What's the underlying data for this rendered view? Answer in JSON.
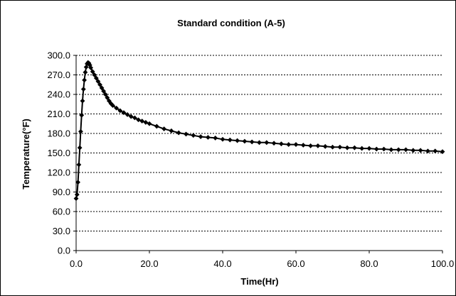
{
  "chart_data": {
    "type": "line",
    "title": "Standard condition (A-5)",
    "xlabel": "Time(Hr)",
    "ylabel": "Temperature(°F)",
    "xlim": [
      0,
      100
    ],
    "ylim": [
      0,
      300
    ],
    "x_ticks": [
      0,
      20,
      40,
      60,
      80,
      100
    ],
    "x_tick_labels": [
      "0.0",
      "20.0",
      "40.0",
      "60.0",
      "80.0",
      "100.0"
    ],
    "y_ticks": [
      0,
      30,
      60,
      90,
      120,
      150,
      180,
      210,
      240,
      270,
      300
    ],
    "y_tick_labels": [
      "0.0",
      "30.0",
      "60.0",
      "90.0",
      "120.0",
      "150.0",
      "180.0",
      "210.0",
      "240.0",
      "270.0",
      "300.0"
    ],
    "grid": "horizontal-dotted",
    "legend": "none",
    "series": [
      {
        "marker": "diamond",
        "color": "#000000",
        "x": [
          0,
          0.25,
          0.5,
          0.75,
          1,
          1.25,
          1.5,
          1.75,
          2,
          2.25,
          2.5,
          2.75,
          3,
          3.25,
          3.5,
          3.75,
          4,
          4.5,
          5,
          5.5,
          6,
          6.5,
          7,
          7.5,
          8,
          8.5,
          9,
          9.5,
          10,
          11,
          12,
          13,
          14,
          15,
          16,
          17,
          18,
          19,
          20,
          22,
          24,
          26,
          28,
          30,
          32,
          34,
          36,
          38,
          40,
          42,
          44,
          46,
          48,
          50,
          52,
          54,
          56,
          58,
          60,
          62,
          64,
          66,
          68,
          70,
          72,
          74,
          76,
          78,
          80,
          82,
          84,
          86,
          88,
          90,
          92,
          94,
          96,
          98,
          100
        ],
        "y": [
          80,
          86,
          105,
          132,
          158,
          183,
          208,
          230,
          248,
          262,
          274,
          282,
          287,
          289,
          288,
          285,
          281,
          275,
          270,
          265,
          260,
          255,
          250,
          245,
          240,
          235,
          230,
          226,
          223,
          219,
          215,
          212,
          209,
          206,
          204,
          201,
          199,
          197,
          195,
          191,
          187,
          184,
          181,
          179,
          177,
          175,
          174,
          173,
          171,
          170,
          169,
          168,
          167,
          166,
          166,
          165,
          164,
          163,
          163,
          162,
          161,
          161,
          160,
          159,
          159,
          158,
          158,
          157,
          157,
          156,
          156,
          155,
          155,
          155,
          154,
          154,
          153,
          153,
          152
        ]
      }
    ]
  }
}
